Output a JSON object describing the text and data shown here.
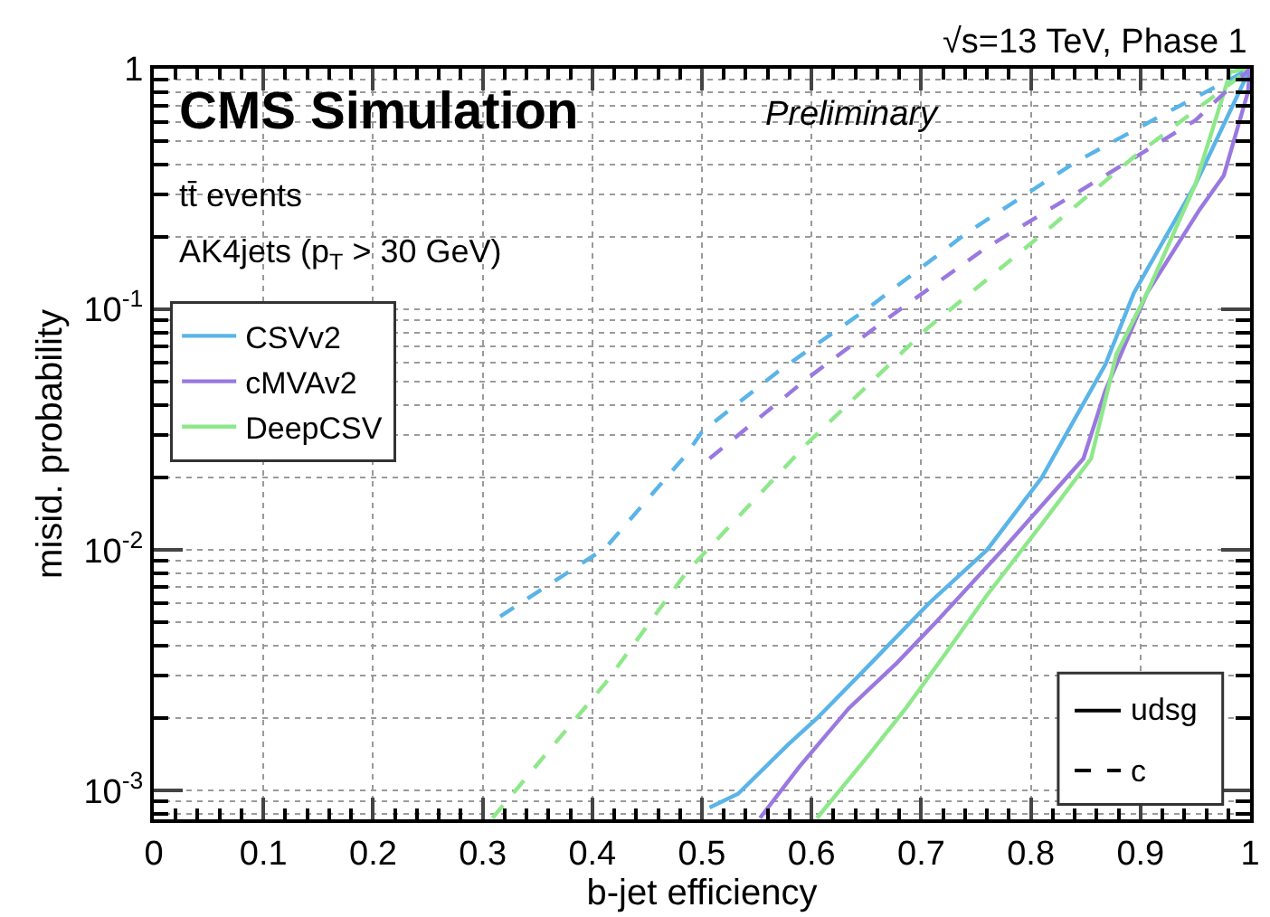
{
  "chart_data": {
    "type": "line",
    "xlabel": "b-jet efficiency",
    "ylabel": "misid. probability",
    "xlim": [
      0,
      1
    ],
    "xticks": [
      0,
      0.1,
      0.2,
      0.3,
      0.4,
      0.5,
      0.6,
      0.7,
      0.8,
      0.9,
      1
    ],
    "ylim": [
      0.00076,
      1
    ],
    "yticks": [
      {
        "value": 0.001,
        "label": "10$^{-3}$"
      },
      {
        "value": 0.01,
        "label": "10$^{-2}$"
      },
      {
        "value": 0.1,
        "label": "10$^{-1}$"
      },
      1
    ],
    "log": true,
    "grid": true,
    "legend": "top left",
    "marker": "none",
    "annotations": [
      "√s=13 TeV, Phase 1",
      "CMS Simulation",
      "Preliminary",
      "tt̄ events",
      "AK4jets (p$_{T}$ > 30 GeV)",
      "udsg",
      "c"
    ],
    "series": [
      {
        "name": "CSVv2",
        "color": "#5ab4e8",
        "line_style": "solid",
        "x": [
          0.507,
          0.533,
          0.579,
          0.605,
          0.649,
          0.707,
          0.76,
          0.81,
          0.84,
          0.868,
          0.894,
          0.95,
          1
        ],
        "values": [
          0.00085,
          0.00097,
          0.00156,
          0.002,
          0.0032,
          0.006,
          0.01,
          0.02,
          0.035,
          0.059,
          0.117,
          0.33,
          1
        ]
      },
      {
        "name": "cMVAv2",
        "color": "#9a78e0",
        "line_style": "solid",
        "x": [
          0.553,
          0.589,
          0.634,
          0.678,
          0.715,
          0.774,
          0.848,
          0.868,
          0.906,
          0.954,
          0.976,
          0.998,
          1
        ],
        "values": [
          0.00077,
          0.00126,
          0.0022,
          0.0034,
          0.0051,
          0.01,
          0.024,
          0.046,
          0.117,
          0.26,
          0.36,
          0.8,
          1
        ]
      },
      {
        "name": "DeepCSV",
        "color": "#8ee88a",
        "line_style": "solid",
        "x": [
          0.605,
          0.649,
          0.686,
          0.722,
          0.759,
          0.811,
          0.855,
          0.878,
          0.906,
          0.95,
          0.982,
          1
        ],
        "values": [
          0.00077,
          0.00135,
          0.0022,
          0.0037,
          0.0064,
          0.013,
          0.024,
          0.065,
          0.117,
          0.33,
          0.97,
          1
        ]
      },
      {
        "color": "#5ab4e8",
        "line_style": "dashed",
        "x": [
          0.316,
          0.412,
          0.486,
          0.5,
          0.569,
          0.65,
          0.743,
          0.841,
          0.922,
          1
        ],
        "values": [
          0.0053,
          0.0102,
          0.025,
          0.031,
          0.055,
          0.1,
          0.21,
          0.41,
          0.65,
          1
        ]
      },
      {
        "color": "#9a78e0",
        "line_style": "dashed",
        "x": [
          0.507,
          0.597,
          0.678,
          0.759,
          0.868,
          0.95,
          1
        ],
        "values": [
          0.024,
          0.052,
          0.098,
          0.18,
          0.36,
          0.61,
          1
        ]
      },
      {
        "color": "#8ee88a",
        "line_style": "dashed",
        "x": [
          0.309,
          0.412,
          0.486,
          0.597,
          0.705,
          0.813,
          0.894,
          1
        ],
        "values": [
          0.00077,
          0.0028,
          0.0081,
          0.028,
          0.083,
          0.21,
          0.43,
          1
        ]
      }
    ]
  }
}
